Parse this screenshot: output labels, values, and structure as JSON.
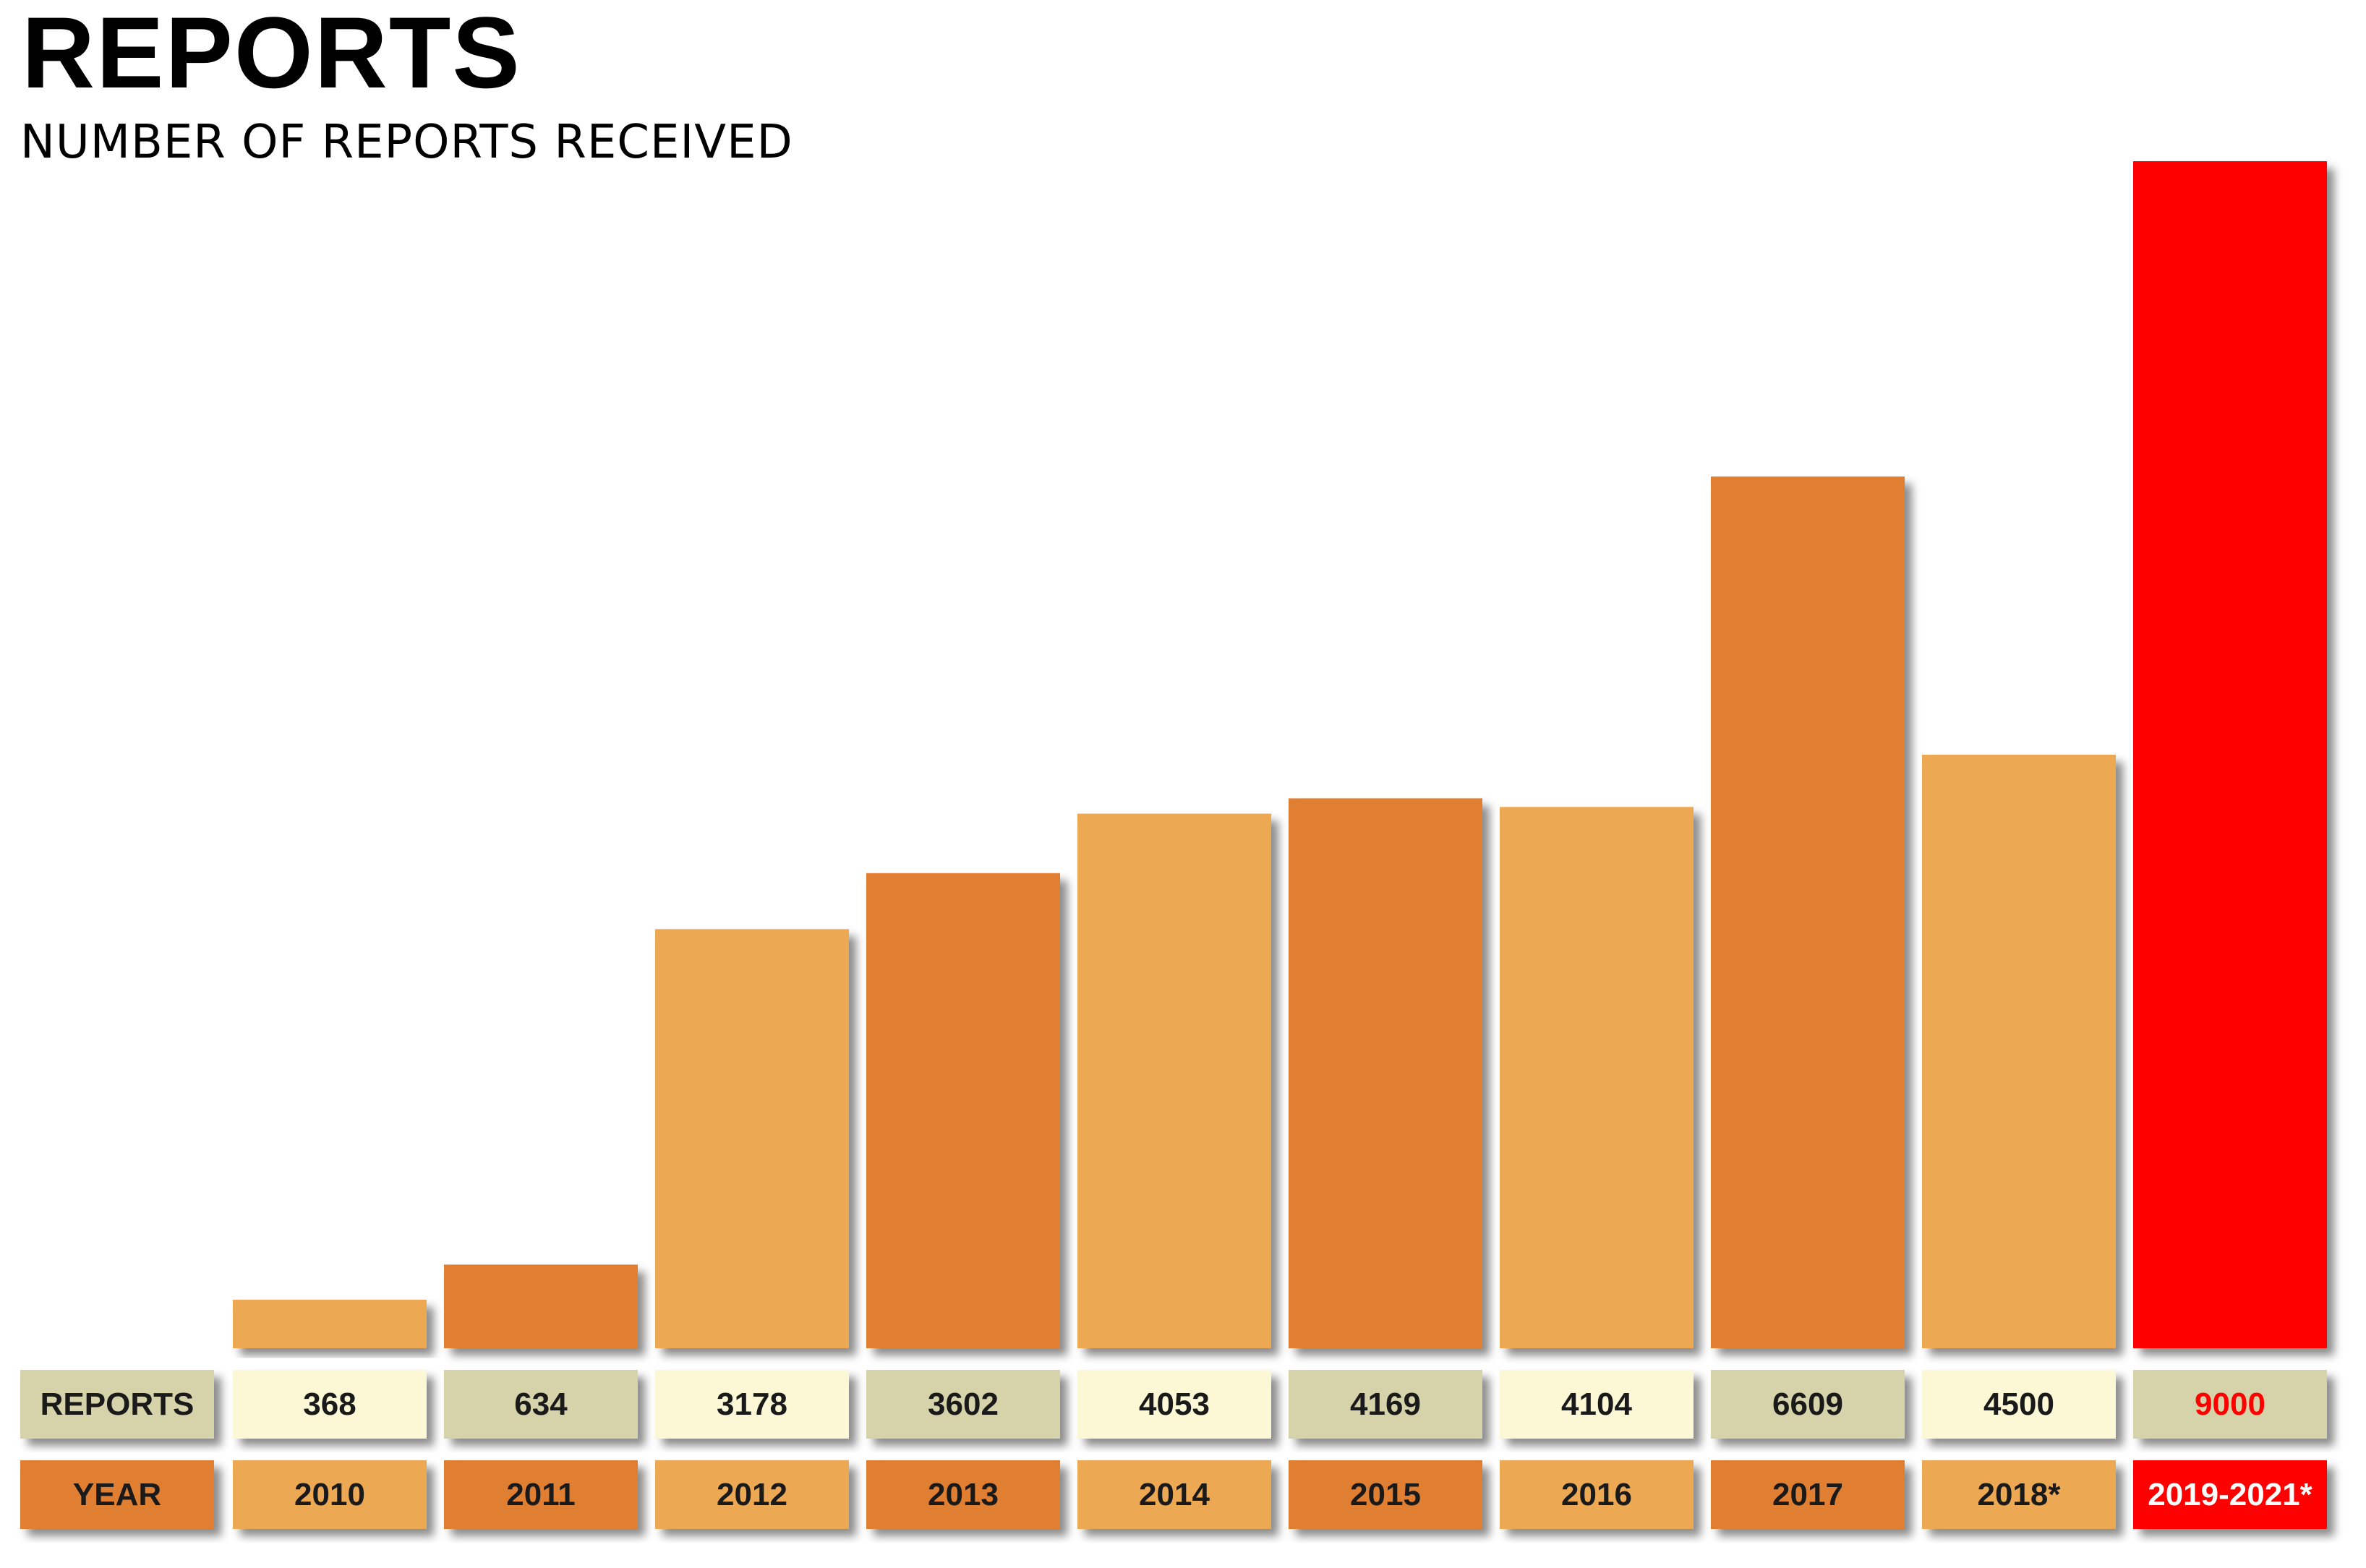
{
  "title": "REPORTS",
  "subtitle": "NUMBER OF REPORTS RECEIVED",
  "colors": {
    "bar_light": "#EDA853",
    "bar_dark": "#E07E33",
    "bar_highlight": "#FF0000",
    "reports_cell_light": "#FCF8D6",
    "reports_cell_dark": "#D6D2AA",
    "highlight_text": "#FF0000"
  },
  "chart_data": {
    "type": "bar",
    "title": "REPORTS",
    "subtitle": "NUMBER OF REPORTS RECEIVED",
    "row_labels": {
      "values": "REPORTS",
      "categories": "YEAR"
    },
    "categories": [
      "2010",
      "2011",
      "2012",
      "2013",
      "2014",
      "2015",
      "2016",
      "2017",
      "2018*",
      "2019-2021*"
    ],
    "values": [
      368,
      634,
      3178,
      3602,
      4053,
      4169,
      4104,
      6609,
      4500,
      9000
    ],
    "value_labels": [
      "368",
      "634",
      "3178",
      "3602",
      "4053",
      "4169",
      "4104",
      "6609",
      "4500",
      "9000"
    ],
    "highlight_index": 9,
    "ylim": [
      0,
      9000
    ],
    "grid": false,
    "legend": "none"
  }
}
